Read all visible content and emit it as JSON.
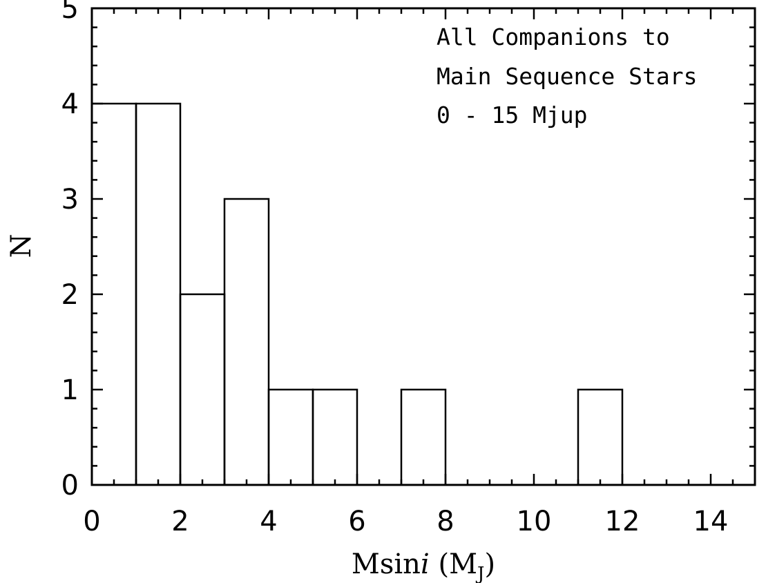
{
  "chart_data": {
    "type": "bar",
    "bins": [
      {
        "x0": 0,
        "x1": 1,
        "n": 4
      },
      {
        "x0": 1,
        "x1": 2,
        "n": 4
      },
      {
        "x0": 2,
        "x1": 3,
        "n": 2
      },
      {
        "x0": 3,
        "x1": 4,
        "n": 3
      },
      {
        "x0": 4,
        "x1": 5,
        "n": 1
      },
      {
        "x0": 5,
        "x1": 6,
        "n": 1
      },
      {
        "x0": 6,
        "x1": 7,
        "n": 0
      },
      {
        "x0": 7,
        "x1": 8,
        "n": 1
      },
      {
        "x0": 8,
        "x1": 9,
        "n": 0
      },
      {
        "x0": 9,
        "x1": 10,
        "n": 0
      },
      {
        "x0": 10,
        "x1": 11,
        "n": 0
      },
      {
        "x0": 11,
        "x1": 12,
        "n": 1
      },
      {
        "x0": 12,
        "x1": 13,
        "n": 0
      },
      {
        "x0": 13,
        "x1": 14,
        "n": 0
      },
      {
        "x0": 14,
        "x1": 15,
        "n": 0
      }
    ],
    "xlim": [
      0,
      15
    ],
    "ylim": [
      0,
      5
    ],
    "xticks": [
      "0",
      "2",
      "4",
      "6",
      "8",
      "10",
      "12",
      "14"
    ],
    "yticks": [
      "0",
      "1",
      "2",
      "3",
      "4",
      "5"
    ],
    "xlabel": {
      "main": "Msin",
      "italic": "i",
      "open": " (M",
      "sub": "J",
      "close": ")"
    },
    "ylabel": "N",
    "annotation": [
      "All Companions to",
      "Main Sequence Stars",
      "0 - 15 Mjup"
    ],
    "grid": false
  }
}
